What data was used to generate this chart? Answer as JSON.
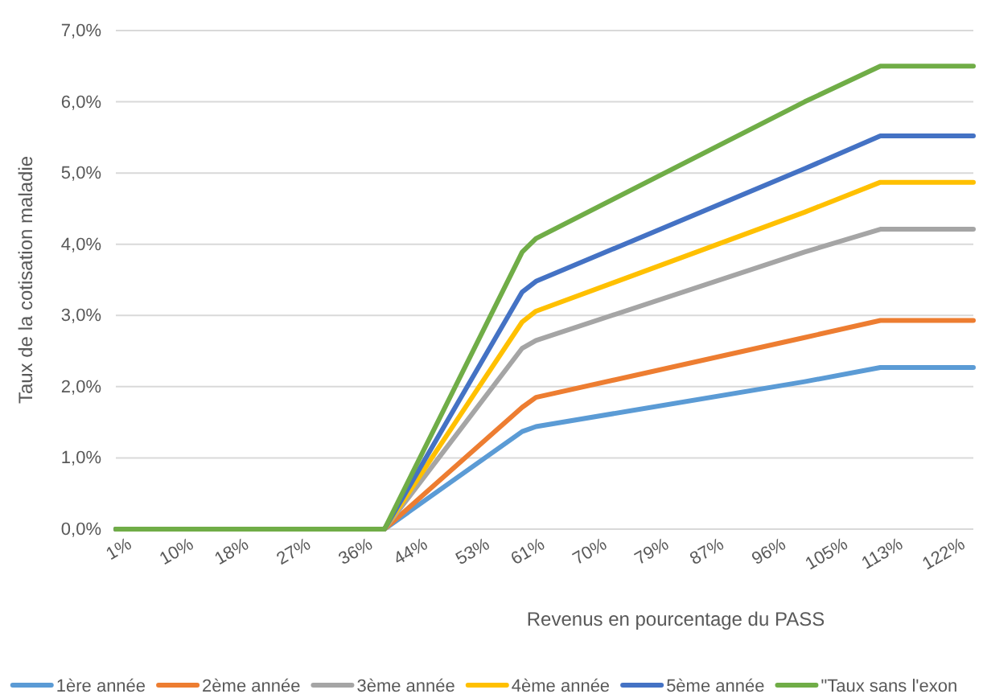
{
  "chart_data": {
    "type": "line",
    "xlabel": "Revenus en pourcentage du PASS",
    "ylabel": "Taux de la cotisation maladie",
    "x": [
      1,
      40,
      60,
      62,
      101,
      112,
      125.5
    ],
    "xlim": [
      1,
      125.5
    ],
    "xticks": [
      {
        "value": 1,
        "label": "1%"
      },
      {
        "value": 10,
        "label": "10%"
      },
      {
        "value": 18,
        "label": "18%"
      },
      {
        "value": 27,
        "label": "27%"
      },
      {
        "value": 36,
        "label": "36%"
      },
      {
        "value": 44,
        "label": "44%"
      },
      {
        "value": 53,
        "label": "53%"
      },
      {
        "value": 61,
        "label": "61%"
      },
      {
        "value": 70,
        "label": "70%"
      },
      {
        "value": 79,
        "label": "79%"
      },
      {
        "value": 87,
        "label": "87%"
      },
      {
        "value": 96,
        "label": "96%"
      },
      {
        "value": 105,
        "label": "105%"
      },
      {
        "value": 113,
        "label": "113%"
      },
      {
        "value": 122,
        "label": "122%"
      }
    ],
    "ylim": [
      0,
      7
    ],
    "yticks": [
      {
        "value": 0,
        "label": "0,0%"
      },
      {
        "value": 1,
        "label": "1,0%"
      },
      {
        "value": 2,
        "label": "2,0%"
      },
      {
        "value": 3,
        "label": "3,0%"
      },
      {
        "value": 4,
        "label": "4,0%"
      },
      {
        "value": 5,
        "label": "5,0%"
      },
      {
        "value": 6,
        "label": "6,0%"
      },
      {
        "value": 7,
        "label": "7,0%"
      }
    ],
    "grid": "y",
    "legend": "bottom",
    "marker": "none",
    "line_style": "solid",
    "series": [
      {
        "name": "1ère année",
        "color": "#5b9bd5",
        "values": [
          0,
          0,
          1.37,
          1.44,
          2.07,
          2.27,
          2.27
        ]
      },
      {
        "name": "2ème année",
        "color": "#ed7d31",
        "values": [
          0,
          0,
          1.71,
          1.85,
          2.69,
          2.93,
          2.93
        ]
      },
      {
        "name": "3ème année",
        "color": "#a5a5a5",
        "values": [
          0,
          0,
          2.54,
          2.65,
          3.89,
          4.21,
          4.21
        ]
      },
      {
        "name": "4ème année",
        "color": "#ffc000",
        "values": [
          0,
          0,
          2.91,
          3.06,
          4.45,
          4.87,
          4.87
        ]
      },
      {
        "name": "5ème année",
        "color": "#4472c4",
        "values": [
          0,
          0,
          3.33,
          3.48,
          5.06,
          5.52,
          5.52
        ]
      },
      {
        "name": "\"Taux sans l'exon",
        "color": "#70ad47",
        "values": [
          0,
          0,
          3.89,
          4.08,
          6.0,
          6.5,
          6.5
        ]
      }
    ]
  }
}
